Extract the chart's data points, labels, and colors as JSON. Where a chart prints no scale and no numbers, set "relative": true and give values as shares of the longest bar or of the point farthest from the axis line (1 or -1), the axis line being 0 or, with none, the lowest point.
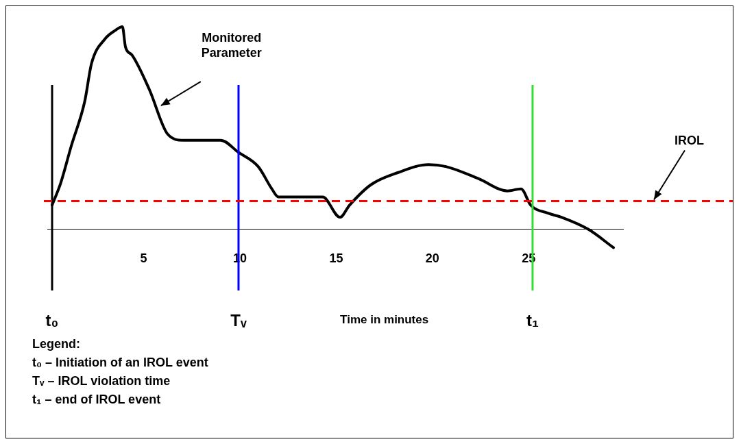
{
  "chart_data": {
    "type": "line",
    "relative": true,
    "xlabel": "Time in minutes",
    "xlim": [
      0,
      29.9
    ],
    "xticks": [
      5,
      10,
      15,
      20,
      25
    ],
    "tick_labels": "x",
    "grid": false,
    "legend": false,
    "marker": "none",
    "series": [
      {
        "color": "#000000",
        "line_style": "solid",
        "x": [
          0.25,
          0.7,
          1.24,
          1.94,
          2.3,
          3.0,
          3.5,
          3.9,
          4.06,
          4.4,
          5.3,
          6.25,
          7.07,
          8.3,
          9.0,
          9.93,
          10.95,
          11.66,
          12.0,
          14.3,
          15.2,
          15.7,
          16.8,
          18.2,
          19.8,
          20.7,
          22.4,
          23.9,
          24.6,
          25.1,
          26.0,
          26.7,
          28.1,
          29.4
        ],
        "values": [
          0.12,
          0.23,
          0.41,
          0.63,
          0.82,
          0.94,
          0.98,
          1.0,
          0.9,
          0.86,
          0.69,
          0.47,
          0.44,
          0.44,
          0.44,
          0.38,
          0.31,
          0.2,
          0.16,
          0.16,
          0.06,
          0.12,
          0.22,
          0.28,
          0.32,
          0.31,
          0.25,
          0.19,
          0.2,
          0.12,
          0.08,
          0.06,
          0.0,
          -0.09
        ]
      }
    ],
    "ref_lines": [
      {
        "axis": "x",
        "value": 0.25,
        "label": "t₀",
        "color": "#000000",
        "line_style": "solid"
      },
      {
        "axis": "x",
        "value": 9.93,
        "label": "Tᵥ",
        "color": "#0000ff",
        "line_style": "solid"
      },
      {
        "axis": "x",
        "value": 25.2,
        "label": "t₁",
        "color": "#33dd33",
        "line_style": "solid"
      },
      {
        "axis": "y",
        "value": 0.14,
        "label": "IROL",
        "color": "#ff0000",
        "line_style": "dashed"
      }
    ],
    "annotations": [
      "Monitored Parameter",
      "Legend:",
      "t₀ – Initiation of an IROL event",
      "Tᵥ – IROL violation time",
      "t₁ – end of IROL event"
    ]
  }
}
